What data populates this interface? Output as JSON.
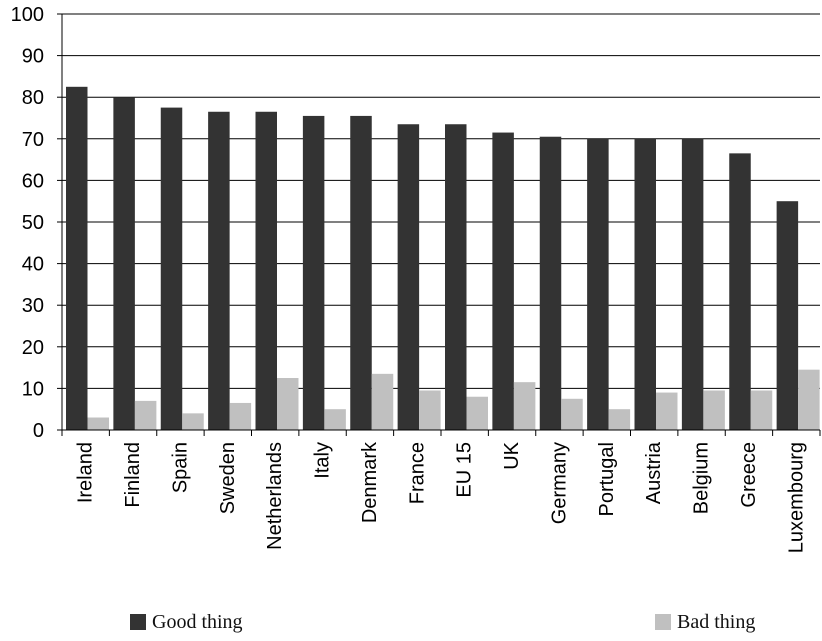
{
  "chart_data": {
    "type": "bar",
    "categories": [
      "Ireland",
      "Finland",
      "Spain",
      "Sweden",
      "Netherlands",
      "Italy",
      "Denmark",
      "France",
      "EU 15",
      "UK",
      "Germany",
      "Portugal",
      "Austria",
      "Belgium",
      "Greece",
      "Luxembourg"
    ],
    "series": [
      {
        "name": "Good thing",
        "color": "#333333",
        "values": [
          82.5,
          80,
          77.5,
          76.5,
          76.5,
          75.5,
          75.5,
          73.5,
          73.5,
          71.5,
          70.5,
          70,
          70,
          70,
          66.5,
          55
        ]
      },
      {
        "name": "Bad thing",
        "color": "#c0c0c0",
        "values": [
          3,
          7,
          4,
          6.5,
          12.5,
          5,
          13.5,
          9.5,
          8,
          11.5,
          7.5,
          5,
          9,
          9.5,
          9.5,
          14.5
        ]
      }
    ],
    "ylim": [
      0,
      100
    ],
    "yticks": [
      0,
      10,
      20,
      30,
      40,
      50,
      60,
      70,
      80,
      90,
      100
    ],
    "grid": true,
    "legend_position": "bottom"
  }
}
